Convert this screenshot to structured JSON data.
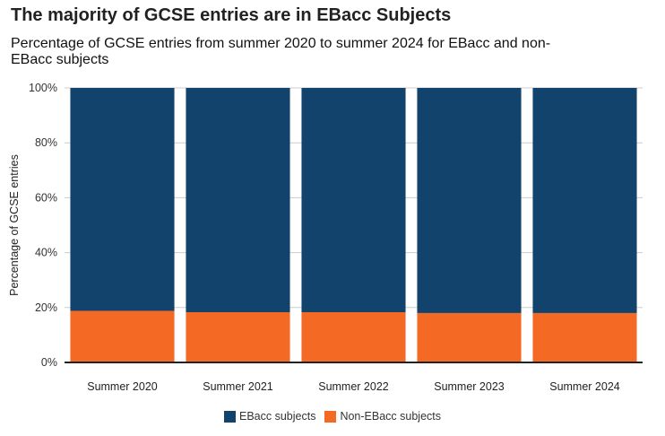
{
  "title": "The majority of GCSE entries are in EBacc Subjects",
  "subtitle": "Percentage of GCSE entries from summer 2020 to summer 2024 for EBacc and non-EBacc subjects",
  "chart_data": {
    "type": "bar",
    "stacked": true,
    "categories": [
      "Summer 2020",
      "Summer 2021",
      "Summer 2022",
      "Summer 2023",
      "Summer 2024"
    ],
    "series": [
      {
        "name": "Non-EBacc subjects",
        "color": "#f46a25",
        "values": [
          18.8,
          18.3,
          18.3,
          18.0,
          18.0
        ]
      },
      {
        "name": "EBacc subjects",
        "color": "#12436d",
        "values": [
          81.2,
          81.7,
          81.7,
          82.0,
          82.0
        ]
      }
    ],
    "ylabel": "Percentage of GCSE entries",
    "xlabel": "",
    "ylim": [
      0,
      100
    ],
    "yticks": [
      "0%",
      "20%",
      "40%",
      "60%",
      "80%",
      "100%"
    ],
    "grid": true,
    "legend": "bottom-center"
  },
  "legend": [
    {
      "label": "EBacc subjects",
      "color": "#12436d"
    },
    {
      "label": "Non-EBacc subjects",
      "color": "#f46a25"
    }
  ]
}
